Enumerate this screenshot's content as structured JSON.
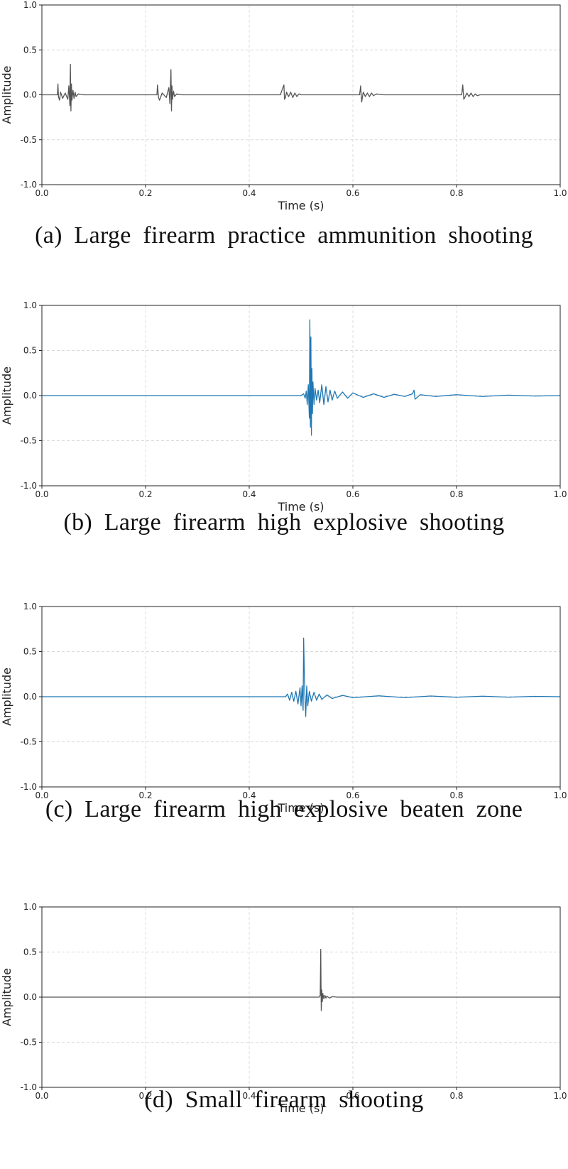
{
  "captions": {
    "a": "(a)  Large  firearm  practice  ammunition  shooting",
    "b": "(b)  Large  firearm  high  explosive  shooting",
    "c": "(c)  Large  firearm  high  explosive  beaten  zone",
    "d": "(d)  Small  firearm  shooting"
  },
  "chart_data": [
    {
      "type": "line",
      "title": "",
      "xlabel": "Time (s)",
      "ylabel": "Amplitude",
      "xlim": [
        0.0,
        1.0
      ],
      "ylim": [
        -1.0,
        1.0
      ],
      "xticks": [
        "0.0",
        "0.2",
        "0.4",
        "0.6",
        "0.8",
        "1.0"
      ],
      "yticks": [
        "1.0",
        "0.5",
        "0.0",
        "-0.5",
        "-1.0"
      ],
      "grid": true,
      "color": "#555555",
      "series": [
        {
          "x": [
            0.0,
            0.03,
            0.031,
            0.032,
            0.034,
            0.036,
            0.04,
            0.045,
            0.05,
            0.052,
            0.054,
            0.055,
            0.056,
            0.057,
            0.058,
            0.06,
            0.062,
            0.064,
            0.066,
            0.07,
            0.08,
            0.1,
            0.15,
            0.2,
            0.222,
            0.223,
            0.225,
            0.227,
            0.232,
            0.24,
            0.245,
            0.247,
            0.249,
            0.25,
            0.251,
            0.252,
            0.254,
            0.256,
            0.26,
            0.27,
            0.28,
            0.3,
            0.35,
            0.4,
            0.46,
            0.467,
            0.468,
            0.47,
            0.472,
            0.476,
            0.48,
            0.484,
            0.488,
            0.492,
            0.496,
            0.5,
            0.52,
            0.55,
            0.6,
            0.613,
            0.615,
            0.617,
            0.62,
            0.624,
            0.628,
            0.632,
            0.636,
            0.64,
            0.645,
            0.66,
            0.68,
            0.7,
            0.75,
            0.8,
            0.81,
            0.812,
            0.814,
            0.816,
            0.82,
            0.824,
            0.828,
            0.832,
            0.836,
            0.84,
            0.845,
            0.86,
            0.9,
            0.95,
            1.0
          ],
          "values": [
            0.0,
            0.0,
            0.12,
            -0.02,
            -0.06,
            0.03,
            -0.04,
            0.02,
            -0.05,
            0.1,
            -0.12,
            0.34,
            -0.18,
            0.12,
            -0.06,
            0.05,
            -0.04,
            0.03,
            -0.02,
            0.01,
            0.0,
            0.0,
            0.0,
            0.0,
            0.0,
            0.11,
            -0.03,
            -0.06,
            0.02,
            -0.03,
            0.08,
            -0.1,
            0.28,
            -0.18,
            0.1,
            -0.05,
            0.04,
            -0.02,
            0.01,
            0.0,
            0.0,
            0.0,
            0.0,
            0.0,
            0.0,
            0.11,
            -0.05,
            -0.03,
            0.03,
            -0.02,
            0.03,
            -0.03,
            0.02,
            -0.02,
            0.01,
            0.0,
            0.0,
            0.0,
            0.0,
            0.0,
            0.1,
            -0.08,
            0.03,
            -0.02,
            0.02,
            -0.02,
            0.02,
            -0.01,
            0.01,
            0.0,
            0.0,
            0.0,
            0.0,
            0.0,
            0.0,
            0.11,
            -0.05,
            -0.03,
            0.02,
            -0.02,
            0.02,
            -0.02,
            0.01,
            -0.01,
            0.0,
            0.0,
            0.0,
            0.0,
            0.0
          ]
        }
      ]
    },
    {
      "type": "line",
      "title": "",
      "xlabel": "Time (s)",
      "ylabel": "Amplitude",
      "xlim": [
        0.0,
        1.0
      ],
      "ylim": [
        -1.0,
        1.0
      ],
      "xticks": [
        "0.0",
        "0.2",
        "0.4",
        "0.6",
        "0.8",
        "1.0"
      ],
      "yticks": [
        "1.0",
        "0.5",
        "0.0",
        "-0.5",
        "-1.0"
      ],
      "grid": true,
      "color": "#1f77b4",
      "series": [
        {
          "x": [
            0.0,
            0.5,
            0.505,
            0.508,
            0.51,
            0.512,
            0.514,
            0.516,
            0.517,
            0.518,
            0.519,
            0.52,
            0.521,
            0.522,
            0.523,
            0.525,
            0.527,
            0.53,
            0.533,
            0.536,
            0.54,
            0.544,
            0.548,
            0.552,
            0.556,
            0.56,
            0.565,
            0.57,
            0.58,
            0.59,
            0.6,
            0.62,
            0.64,
            0.66,
            0.68,
            0.7,
            0.715,
            0.718,
            0.72,
            0.73,
            0.76,
            0.8,
            0.85,
            0.9,
            0.95,
            1.0
          ],
          "values": [
            0.0,
            0.0,
            0.02,
            -0.03,
            0.05,
            -0.1,
            0.12,
            -0.25,
            0.84,
            -0.35,
            0.65,
            -0.44,
            0.3,
            -0.2,
            0.15,
            -0.1,
            0.08,
            -0.05,
            0.06,
            -0.08,
            0.12,
            -0.1,
            0.1,
            -0.07,
            0.06,
            -0.05,
            0.05,
            -0.03,
            0.04,
            -0.03,
            0.03,
            -0.02,
            0.02,
            -0.02,
            0.015,
            -0.01,
            0.02,
            0.06,
            -0.04,
            0.01,
            -0.01,
            0.01,
            -0.01,
            0.005,
            -0.005,
            0.0
          ]
        }
      ]
    },
    {
      "type": "line",
      "title": "",
      "xlabel": "Time (s)",
      "ylabel": "Amplitude",
      "xlim": [
        0.0,
        1.0
      ],
      "ylim": [
        -1.0,
        1.0
      ],
      "xticks": [
        "0.0",
        "0.2",
        "0.4",
        "0.6",
        "0.8",
        "1.0"
      ],
      "yticks": [
        "1.0",
        "0.5",
        "0.0",
        "-0.5",
        "-1.0"
      ],
      "grid": true,
      "color": "#1f77b4",
      "series": [
        {
          "x": [
            0.0,
            0.47,
            0.474,
            0.478,
            0.482,
            0.486,
            0.49,
            0.494,
            0.498,
            0.5,
            0.502,
            0.504,
            0.505,
            0.507,
            0.509,
            0.511,
            0.513,
            0.516,
            0.52,
            0.525,
            0.53,
            0.535,
            0.54,
            0.55,
            0.56,
            0.58,
            0.6,
            0.65,
            0.7,
            0.75,
            0.8,
            0.85,
            0.9,
            0.95,
            1.0
          ],
          "values": [
            0.0,
            0.0,
            0.03,
            -0.04,
            0.05,
            -0.05,
            0.06,
            -0.08,
            0.1,
            -0.1,
            0.12,
            -0.15,
            0.65,
            0.1,
            -0.22,
            0.12,
            -0.1,
            0.06,
            -0.05,
            0.05,
            -0.04,
            0.03,
            -0.03,
            0.02,
            -0.02,
            0.015,
            -0.01,
            0.01,
            -0.01,
            0.008,
            -0.006,
            0.006,
            -0.005,
            0.004,
            0.0
          ]
        }
      ]
    },
    {
      "type": "line",
      "title": "",
      "xlabel": "Time (s)",
      "ylabel": "Amplitude",
      "xlim": [
        0.0,
        1.0
      ],
      "ylim": [
        -1.0,
        1.0
      ],
      "xticks": [
        "0.0",
        "0.2",
        "0.4",
        "0.6",
        "0.8",
        "1.0"
      ],
      "yticks": [
        "1.0",
        "0.5",
        "0.0",
        "-0.5",
        "-1.0"
      ],
      "grid": true,
      "color": "#555555",
      "series": [
        {
          "x": [
            0.0,
            0.535,
            0.537,
            0.538,
            0.539,
            0.54,
            0.541,
            0.542,
            0.544,
            0.546,
            0.548,
            0.55,
            0.555,
            0.56,
            0.57,
            0.6,
            0.7,
            0.8,
            0.9,
            1.0
          ],
          "values": [
            0.0,
            0.0,
            0.02,
            0.53,
            -0.15,
            0.08,
            -0.05,
            0.04,
            -0.02,
            0.02,
            -0.01,
            0.01,
            -0.01,
            0.005,
            0.0,
            0.0,
            0.0,
            0.0,
            0.0,
            0.0
          ]
        }
      ]
    }
  ]
}
